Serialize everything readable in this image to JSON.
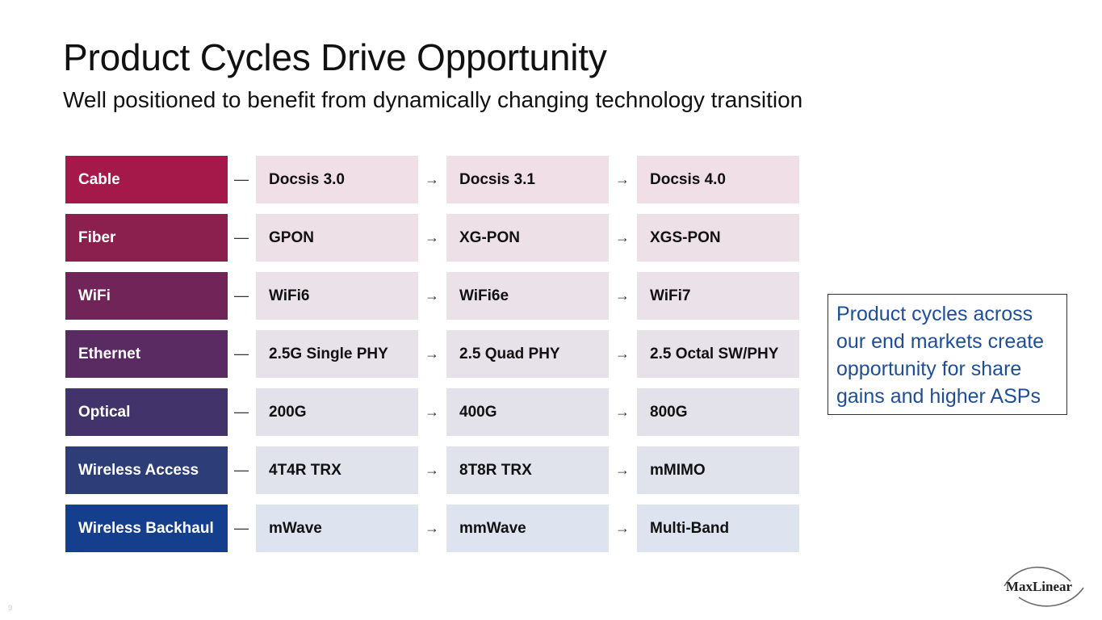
{
  "slide": {
    "title": "Product Cycles Drive Opportunity",
    "subtitle": "Well positioned to benefit from dynamically changing technology transition",
    "callout": "Product cycles across our end markets create opportunity for share gains and higher ASPs",
    "logo_text": "MaxLinear",
    "page_number": "9"
  },
  "connectors": {
    "dash": "—",
    "arrow": "→"
  },
  "rows": [
    {
      "category": "Cable",
      "color": "#a5194a",
      "cell_color": "#f0dfe6",
      "steps": [
        "Docsis 3.0",
        "Docsis 3.1",
        "Docsis 4.0"
      ]
    },
    {
      "category": "Fiber",
      "color": "#8b1f4e",
      "cell_color": "#eee0e7",
      "steps": [
        "GPON",
        "XG-PON",
        "XGS-PON"
      ]
    },
    {
      "category": "WiFi",
      "color": "#702457",
      "cell_color": "#ebe1e8",
      "steps": [
        "WiFi6",
        "WiFi6e",
        "WiFi7"
      ]
    },
    {
      "category": "Ethernet",
      "color": "#5a2a62",
      "cell_color": "#e7e1ea",
      "steps": [
        "2.5G Single PHY",
        "2.5 Quad PHY",
        "2.5 Octal SW/PHY"
      ]
    },
    {
      "category": "Optical",
      "color": "#42346a",
      "cell_color": "#e3e2eb",
      "steps": [
        "200G",
        "400G",
        "800G"
      ]
    },
    {
      "category": "Wireless Access",
      "color": "#2c3d78",
      "cell_color": "#e0e2ec",
      "steps": [
        "4T4R TRX",
        "8T8R TRX",
        "mMIMO"
      ]
    },
    {
      "category": "Wireless Backhaul",
      "color": "#153f8c",
      "cell_color": "#dde3ef",
      "steps": [
        "mWave",
        "mmWave",
        "Multi-Band"
      ]
    }
  ]
}
